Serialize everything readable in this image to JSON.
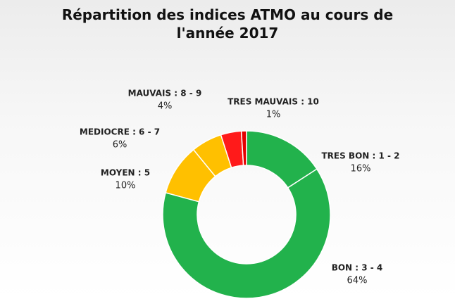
{
  "chart_data": {
    "type": "donut",
    "title": "Répartition des indices ATMO au cours de l'année 2017",
    "categories": [
      "TRES BON : 1 - 2",
      "BON : 3 - 4",
      "MOYEN : 5",
      "MEDIOCRE : 6 - 7",
      "MAUVAIS : 8 - 9",
      "TRES MAUVAIS : 10"
    ],
    "values": [
      16,
      64,
      10,
      6,
      4,
      1
    ],
    "value_labels": [
      "16%",
      "64%",
      "10%",
      "6%",
      "4%",
      "1%"
    ],
    "colors": [
      "#22b24c",
      "#22b24c",
      "#ffc000",
      "#ffc000",
      "#ff1a1a",
      "#e60000"
    ]
  }
}
